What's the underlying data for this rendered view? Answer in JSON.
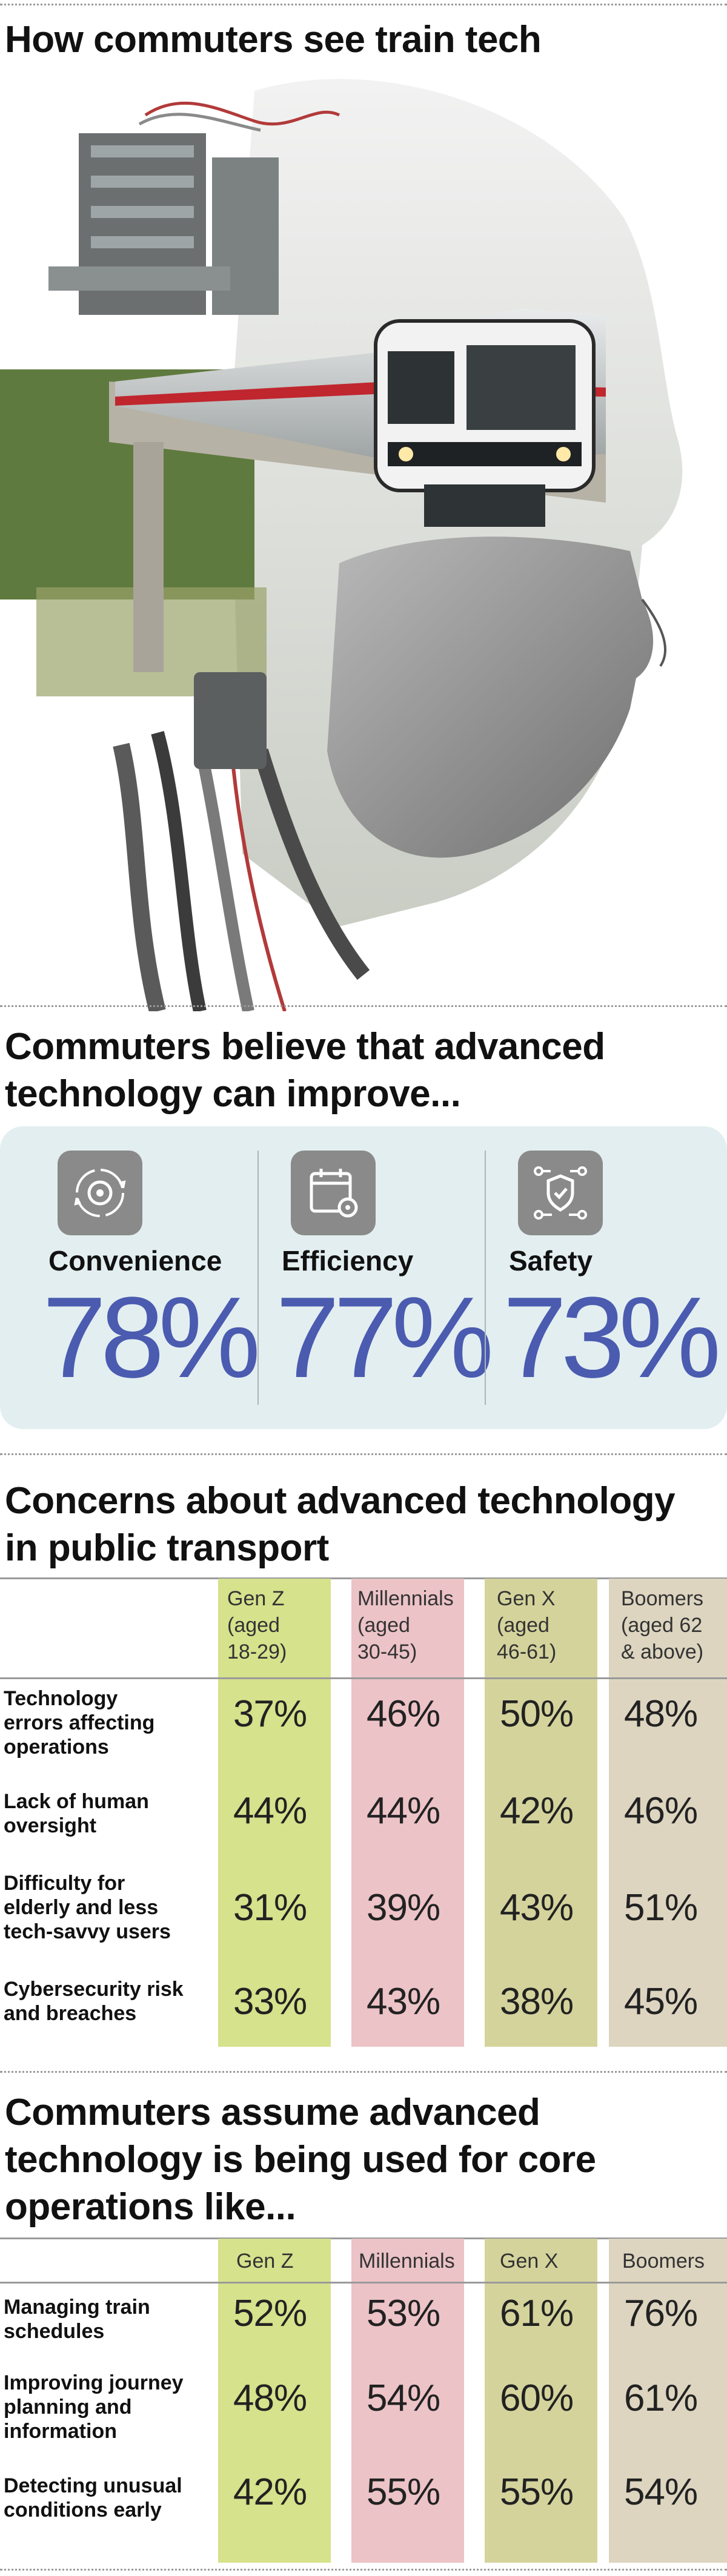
{
  "title": "How commuters see train tech",
  "improve": {
    "heading_line1": "Commuters believe that advanced",
    "heading_line2": "technology can improve...",
    "items": [
      {
        "label": "Convenience",
        "value": "78%",
        "icon": "gear-cycle-icon"
      },
      {
        "label": "Efficiency",
        "value": "77%",
        "icon": "calendar-gear-icon"
      },
      {
        "label": "Safety",
        "value": "73%",
        "icon": "shield-network-icon"
      }
    ],
    "card_color": "#e3eef0",
    "value_color": "#4a5bb0"
  },
  "concerns": {
    "heading_line1": "Concerns about advanced technology",
    "heading_line2": "in public transport",
    "columns": [
      {
        "lines": [
          "Gen Z",
          "(aged",
          "18-29)"
        ],
        "color": "#d6e28c"
      },
      {
        "lines": [
          "Millennials",
          "(aged",
          "30-45)"
        ],
        "color": "#ecc3c7"
      },
      {
        "lines": [
          "Gen X",
          "(aged",
          "46-61)"
        ],
        "color": "#d4d39c"
      },
      {
        "lines": [
          "Boomers",
          "(aged 62",
          "& above)"
        ],
        "color": "#ddd5c0"
      }
    ],
    "rows": [
      {
        "label": [
          "Technology",
          "errors affecting",
          "operations"
        ],
        "values": [
          "37%",
          "46%",
          "50%",
          "48%"
        ]
      },
      {
        "label": [
          "Lack of human",
          "oversight"
        ],
        "values": [
          "44%",
          "44%",
          "42%",
          "46%"
        ]
      },
      {
        "label": [
          "Difficulty for",
          "elderly and less",
          "tech-savvy users"
        ],
        "values": [
          "31%",
          "39%",
          "43%",
          "51%"
        ]
      },
      {
        "label": [
          "Cybersecurity risk",
          "and breaches"
        ],
        "values": [
          "33%",
          "43%",
          "38%",
          "45%"
        ]
      }
    ]
  },
  "operations": {
    "heading_line1": "Commuters assume advanced",
    "heading_line2": "technology is being used for core",
    "heading_line3": "operations like...",
    "columns": [
      "Gen Z",
      "Millennials",
      "Gen X",
      "Boomers"
    ],
    "rows": [
      {
        "label": [
          "Managing train",
          "schedules"
        ],
        "values": [
          "52%",
          "53%",
          "61%",
          "76%"
        ]
      },
      {
        "label": [
          "Improving journey",
          "planning and",
          "information"
        ],
        "values": [
          "48%",
          "54%",
          "60%",
          "61%"
        ]
      },
      {
        "label": [
          "Detecting unusual",
          "conditions early"
        ],
        "values": [
          "42%",
          "55%",
          "55%",
          "54%"
        ]
      }
    ]
  }
}
